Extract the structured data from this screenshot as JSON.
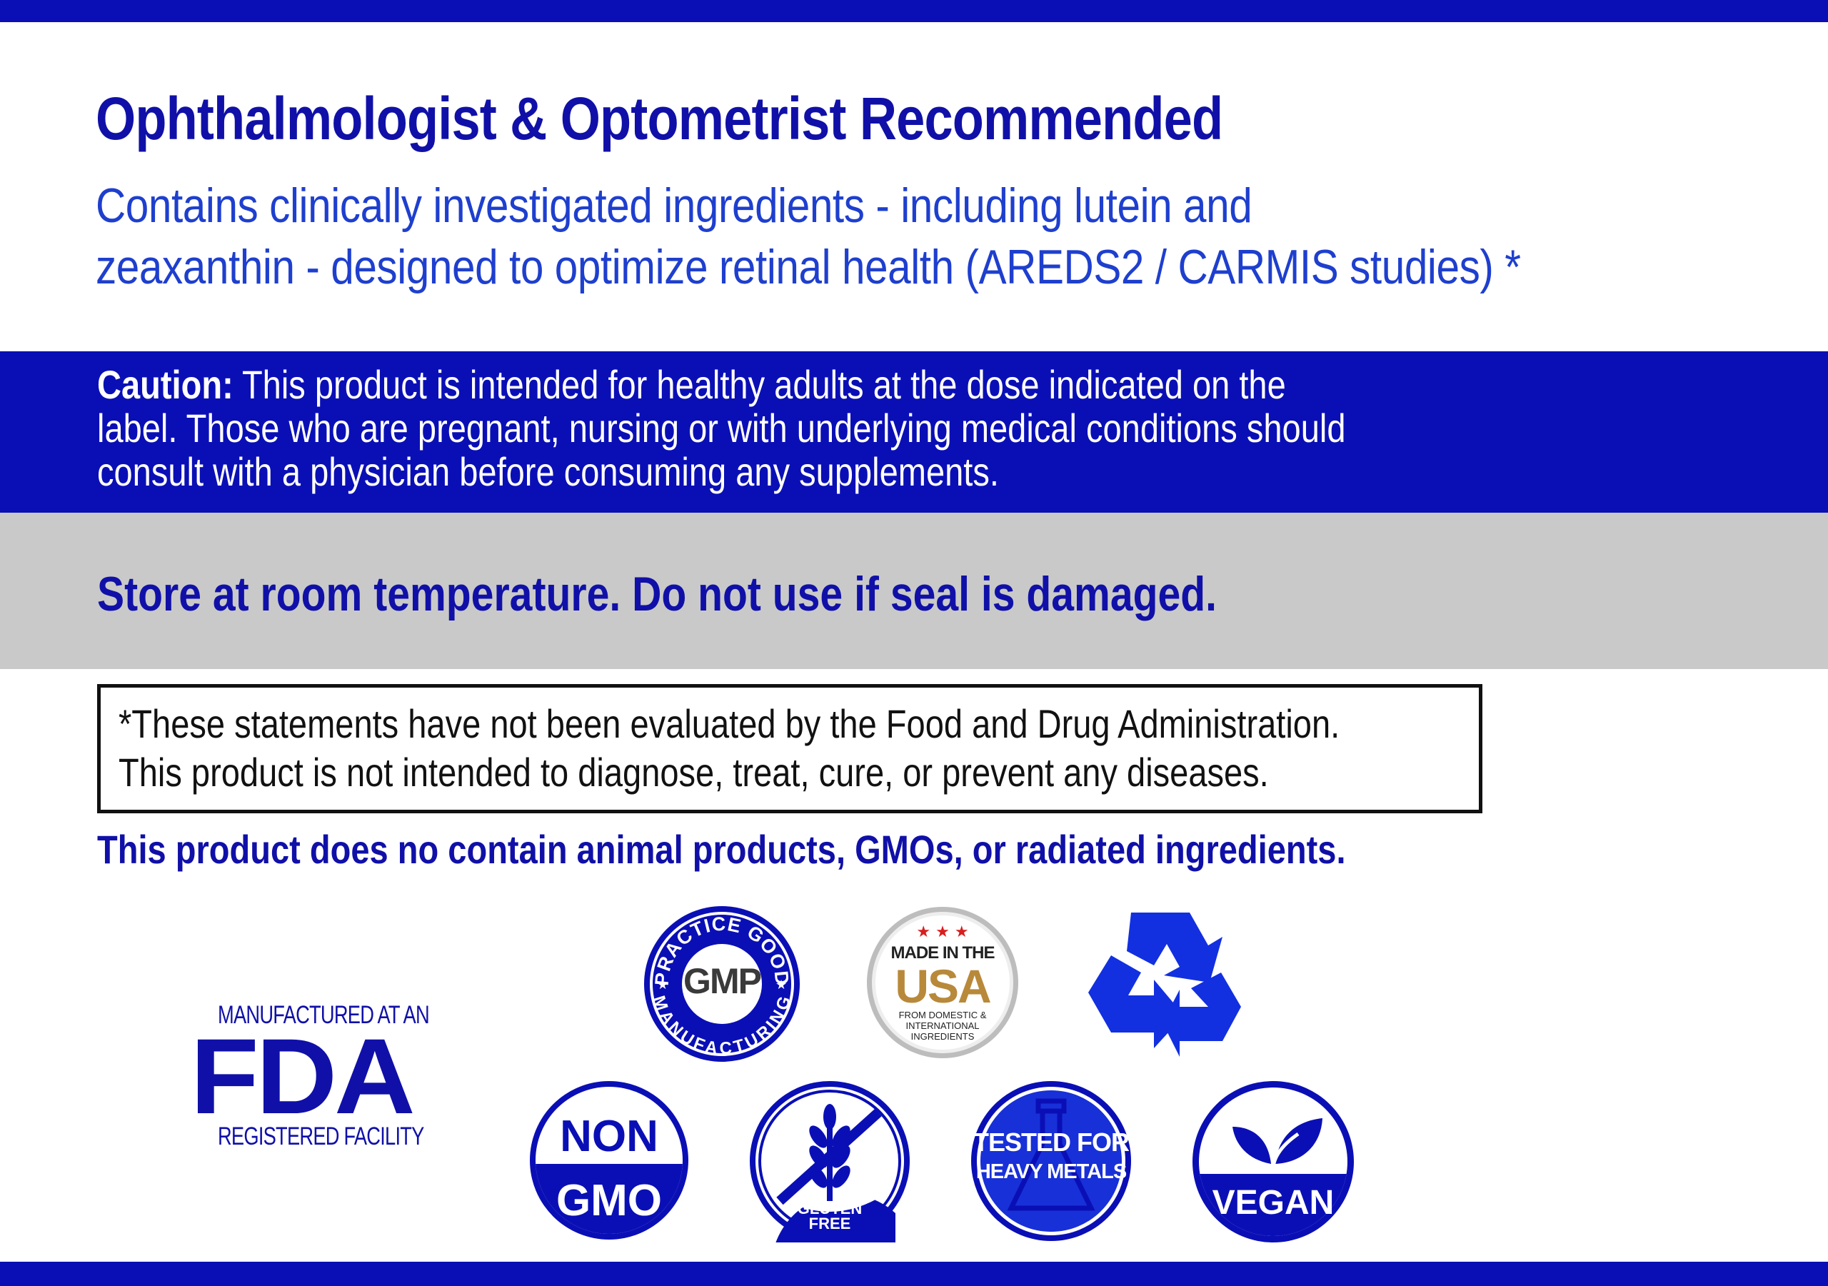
{
  "header": {
    "title": "Ophthalmologist & Optometrist Recommended",
    "subtitle_lines": [
      "Contains clinically investigated ingredients - including lutein and",
      "zeaxanthin - designed to optimize retinal health (AREDS2 / CARMIS studies) *"
    ]
  },
  "caution": {
    "label": "Caution:",
    "lines": [
      "This product is intended for healthy adults at the dose indicated on the",
      "label. Those who are pregnant, nursing or with underlying medical conditions should",
      "consult with a physician before consuming any supplements."
    ]
  },
  "storage": {
    "text": "Store at room temperature. Do not use if seal is damaged."
  },
  "disclaimer": {
    "lines": [
      "*These statements have not been evaluated by the Food and Drug Administration.",
      "This product is not intended to diagnose, treat, cure, or prevent any diseases."
    ]
  },
  "animal_statement": "This product does no contain animal products, GMOs, or radiated ingredients.",
  "fda": {
    "top": "MANUFACTURED AT AN",
    "big": "FDA",
    "bottom": "REGISTERED FACILITY"
  },
  "badges": {
    "gmp": {
      "arc_top": "PRACTICE GOOD",
      "arc_bottom": "MANUFACTURING",
      "center": "GMP",
      "icon": "gmp-seal-icon"
    },
    "usa": {
      "line1": "MADE IN THE",
      "line2": "USA",
      "line3": "FROM DOMESTIC &",
      "line4": "INTERNATIONAL",
      "line5": "INGREDIENTS",
      "icon": "made-in-usa-seal-icon"
    },
    "recycle": {
      "icon": "recycle-icon"
    },
    "nongmo": {
      "line1": "NON",
      "line2": "GMO",
      "icon": "non-gmo-icon"
    },
    "gluten": {
      "line1": "GLUTEN",
      "line2": "FREE",
      "icon": "gluten-free-icon"
    },
    "metals": {
      "line1": "TESTED FOR",
      "line2": "HEAVY METALS",
      "icon": "heavy-metals-icon"
    },
    "vegan": {
      "text": "VEGAN",
      "icon": "vegan-leaf-icon"
    }
  },
  "colors": {
    "brand_blue": "#0a0fb5",
    "text_blue": "#1010a8",
    "subtitle_blue": "#1e3fce",
    "band_gray": "#c9c9c9",
    "recycle_blue": "#1230e0"
  }
}
